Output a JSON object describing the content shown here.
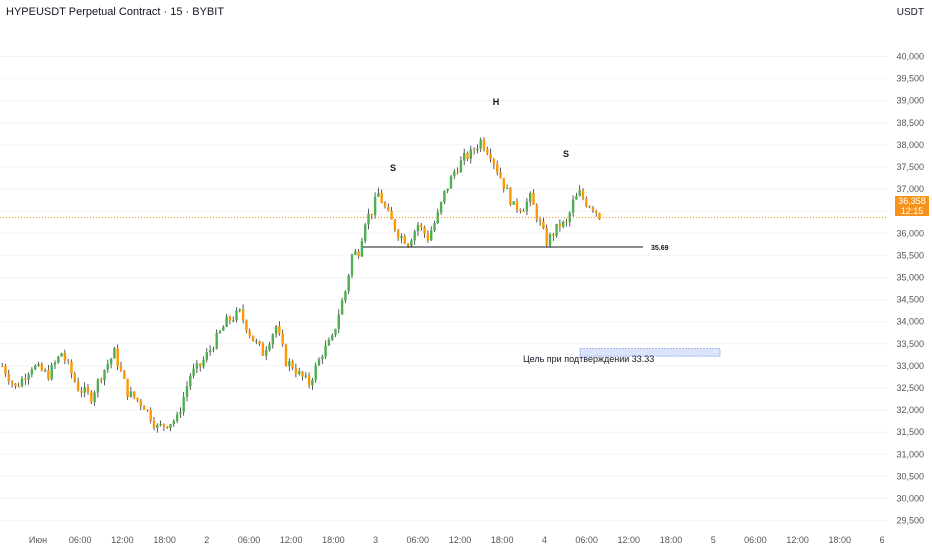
{
  "header": {
    "title": "HYPEUSDT Perpetual Contract · 15 · BYBIT",
    "currency": "USDT"
  },
  "price_badge": {
    "price": "36,358",
    "countdown": "12:15"
  },
  "colors": {
    "up": "#4caf50",
    "down": "#ff9800",
    "wick": "#131722",
    "current_price_line": "#f7931a",
    "support_line": "#131722",
    "target_zone": "#dbe4fb"
  },
  "chart_data": {
    "type": "candlestick",
    "ylim": [
      29.4,
      40.6
    ],
    "x_ticks": [
      "Июн",
      "06:00",
      "12:00",
      "18:00",
      "2",
      "06:00",
      "12:00",
      "18:00",
      "3",
      "06:00",
      "12:00",
      "18:00",
      "4",
      "06:00",
      "12:00",
      "18:00",
      "5",
      "06:00",
      "12:00",
      "18:00",
      "6"
    ],
    "y_ticks": [
      "29,500",
      "30,000",
      "30,500",
      "31,000",
      "31,500",
      "32,000",
      "32,500",
      "33,000",
      "33,500",
      "34,000",
      "34,500",
      "35,000",
      "35,500",
      "36,000",
      "36,500",
      "37,000",
      "37,500",
      "38,000",
      "38,500",
      "39,000",
      "39,500",
      "40,000"
    ],
    "price_path": [
      [
        0,
        33.0
      ],
      [
        4,
        32.5
      ],
      [
        9,
        33.0
      ],
      [
        14,
        32.8
      ],
      [
        18,
        33.3
      ],
      [
        23,
        32.5
      ],
      [
        27,
        32.3
      ],
      [
        30,
        32.8
      ],
      [
        34,
        33.3
      ],
      [
        38,
        32.4
      ],
      [
        43,
        32.1
      ],
      [
        47,
        31.6
      ],
      [
        50,
        31.7
      ],
      [
        53,
        31.8
      ],
      [
        57,
        32.8
      ],
      [
        60,
        33.0
      ],
      [
        64,
        33.5
      ],
      [
        68,
        34.0
      ],
      [
        72,
        34.2
      ],
      [
        76,
        33.6
      ],
      [
        79,
        33.3
      ],
      [
        83,
        33.9
      ],
      [
        86,
        33.1
      ],
      [
        88,
        33.0
      ],
      [
        90,
        32.8
      ],
      [
        93,
        32.6
      ],
      [
        97,
        33.3
      ],
      [
        100,
        33.6
      ],
      [
        102,
        34.2
      ],
      [
        104,
        34.7
      ],
      [
        106,
        35.5
      ],
      [
        108,
        35.6
      ],
      [
        110,
        36.3
      ],
      [
        112,
        36.5
      ],
      [
        114,
        36.9
      ],
      [
        117,
        36.4
      ],
      [
        120,
        36.0
      ],
      [
        123,
        35.8
      ],
      [
        126,
        36.2
      ],
      [
        129,
        35.9
      ],
      [
        132,
        36.4
      ],
      [
        134,
        36.9
      ],
      [
        137,
        37.4
      ],
      [
        140,
        37.7
      ],
      [
        142,
        37.8
      ],
      [
        145,
        38.1
      ],
      [
        148,
        37.8
      ],
      [
        152,
        37.1
      ],
      [
        155,
        36.6
      ],
      [
        158,
        36.6
      ],
      [
        160,
        36.8
      ],
      [
        163,
        36.2
      ],
      [
        165,
        35.8
      ],
      [
        167,
        36.0
      ],
      [
        169,
        36.2
      ],
      [
        171,
        36.2
      ],
      [
        173,
        36.7
      ],
      [
        175,
        36.9
      ],
      [
        177,
        36.7
      ],
      [
        179,
        36.6
      ],
      [
        181,
        36.4
      ]
    ],
    "annotations": {
      "left_shoulder_label": "S",
      "head_label": "H",
      "right_shoulder_label": "S",
      "neckline_value": "35.69",
      "target_text": "Цель при подтверждении 33.33"
    },
    "neckline": 35.69,
    "current_price": 36.358,
    "target_zone": [
      33.22,
      33.39
    ]
  }
}
